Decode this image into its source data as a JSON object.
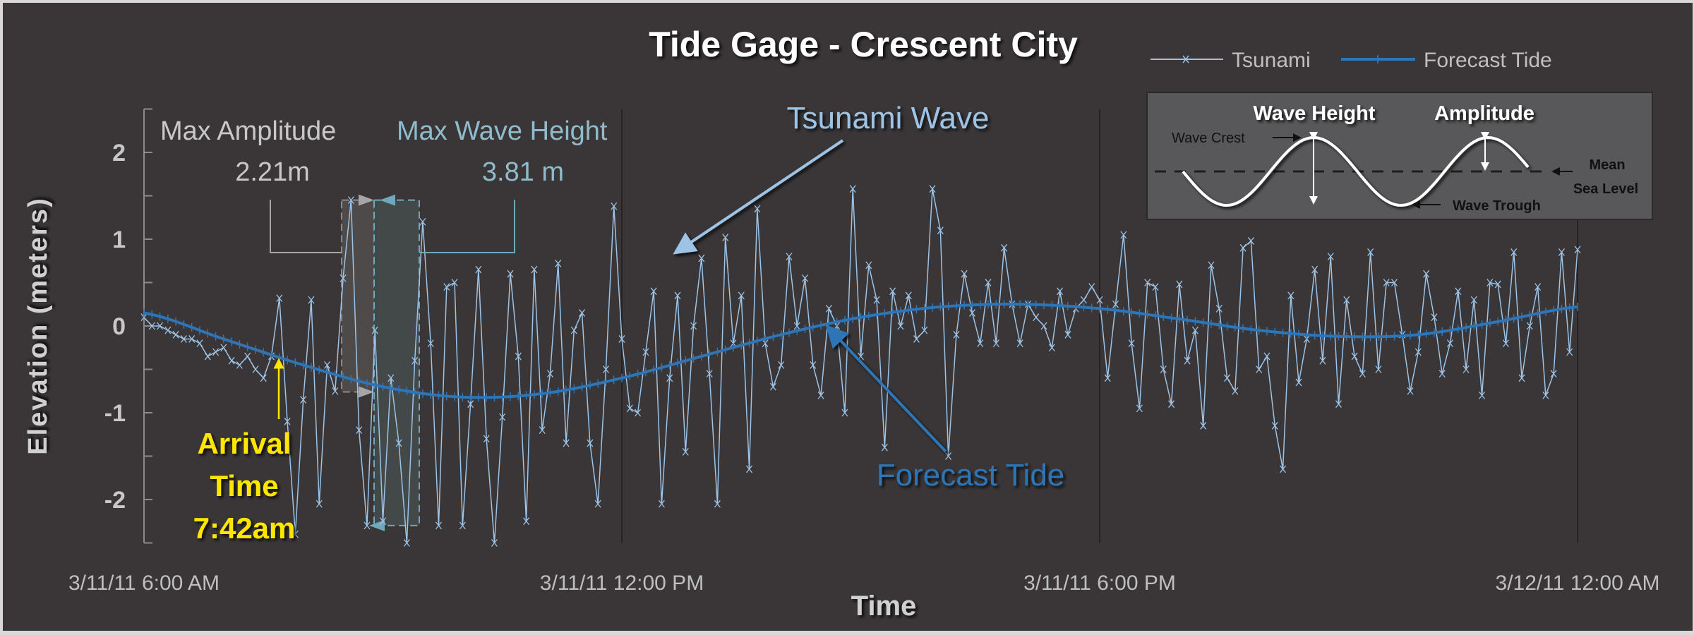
{
  "chart_data": {
    "type": "line",
    "title": "Tide Gage - Crescent City",
    "xlabel": "Time",
    "ylabel": "Elevation (meters)",
    "ylim": [
      -2.5,
      2.5
    ],
    "yticks": [
      "2",
      "1",
      "0",
      "-1",
      "-2"
    ],
    "ytick_values": [
      2,
      1,
      0,
      -1,
      -2
    ],
    "xticks": [
      "3/11/11 6:00 AM",
      "3/11/11 12:00 PM",
      "3/11/11 6:00 PM",
      "3/12/11 12:00 AM"
    ],
    "xtick_hours": [
      6,
      12,
      18,
      24
    ],
    "grid": "vertical at x ticks",
    "legend_position": "top-right",
    "series": [
      {
        "name": "Tsunami",
        "color": "#9dc3e6",
        "marker": "x",
        "start_hour": 6,
        "step_minutes": 6,
        "values": [
          0.1,
          0.0,
          0.0,
          -0.05,
          -0.1,
          -0.15,
          -0.15,
          -0.2,
          -0.35,
          -0.3,
          -0.25,
          -0.4,
          -0.45,
          -0.35,
          -0.5,
          -0.6,
          -0.35,
          0.32,
          -1.1,
          -2.4,
          -0.85,
          0.3,
          -2.05,
          -0.45,
          -0.75,
          0.55,
          1.45,
          -1.2,
          -2.3,
          -0.05,
          -2.25,
          -0.6,
          -1.35,
          -2.5,
          -0.4,
          1.2,
          -0.2,
          -2.3,
          0.45,
          0.5,
          -2.3,
          -0.9,
          0.65,
          -1.3,
          -2.5,
          -1.05,
          0.6,
          -0.35,
          -2.25,
          0.65,
          -1.2,
          -0.55,
          0.72,
          -1.35,
          -0.05,
          0.15,
          -1.35,
          -2.05,
          -0.5,
          1.38,
          -0.15,
          -0.95,
          -1.0,
          -0.3,
          0.4,
          -2.05,
          -0.6,
          0.35,
          -1.45,
          0.0,
          0.78,
          -0.55,
          -2.05,
          1.02,
          -0.2,
          0.35,
          -1.65,
          1.35,
          -0.2,
          -0.7,
          -0.45,
          0.8,
          0.0,
          0.55,
          -0.45,
          -0.8,
          0.2,
          0.0,
          -1.0,
          1.58,
          -0.35,
          0.7,
          0.3,
          -1.4,
          0.4,
          0.0,
          0.35,
          -0.15,
          -0.05,
          1.58,
          1.1,
          -1.5,
          -0.1,
          0.6,
          0.15,
          -0.2,
          0.5,
          -0.2,
          0.9,
          0.25,
          -0.2,
          0.25,
          0.1,
          0.0,
          -0.25,
          0.4,
          -0.1,
          0.2,
          0.3,
          0.45,
          0.3,
          -0.6,
          0.25,
          1.05,
          -0.2,
          -0.95,
          0.5,
          0.45,
          -0.5,
          -0.9,
          0.48,
          -0.4,
          -0.05,
          -1.15,
          0.7,
          0.2,
          -0.6,
          -0.75,
          0.9,
          0.98,
          -0.5,
          -0.35,
          -1.15,
          -1.65,
          0.35,
          -0.65,
          -0.15,
          0.65,
          -0.4,
          0.8,
          -0.9,
          0.3,
          -0.35,
          -0.55,
          0.85,
          -0.5,
          0.5,
          0.5,
          -0.1,
          -0.75,
          -0.3,
          0.6,
          0.1,
          -0.55,
          -0.2,
          0.4,
          -0.5,
          0.3,
          -0.8,
          0.5,
          0.48,
          -0.2,
          0.85,
          -0.6,
          0.0,
          0.45,
          -0.8,
          -0.55,
          0.85,
          -0.3,
          0.88
        ]
      },
      {
        "name": "Forecast Tide",
        "color": "#2e75b6",
        "marker": "+",
        "hours": [
          6,
          7,
          8,
          9,
          10,
          11,
          12,
          13,
          14,
          15,
          16,
          17,
          18,
          19,
          20,
          21,
          22,
          23,
          24
        ],
        "values": [
          0.15,
          -0.15,
          -0.45,
          -0.7,
          -0.82,
          -0.78,
          -0.6,
          -0.35,
          -0.1,
          0.1,
          0.22,
          0.25,
          0.2,
          0.08,
          -0.05,
          -0.12,
          -0.1,
          0.05,
          0.22
        ]
      }
    ],
    "annotations": {
      "max_amplitude_label": "Max Amplitude",
      "max_amplitude_value": "2.21m",
      "max_wave_height_label": "Max Wave Height",
      "max_wave_height_value": "3.81 m",
      "max_crest": 1.45,
      "max_trough": -2.3,
      "tide_at_crest": -0.76,
      "tsunami_wave_label": "Tsunami Wave",
      "forecast_tide_label": "Forecast Tide",
      "arrival_lines": [
        "Arrival",
        "Time",
        "7:42am"
      ],
      "arrival_color": "#ffe600"
    },
    "inset": {
      "wave_height": "Wave Height",
      "amplitude": "Amplitude",
      "wave_crest": "Wave Crest",
      "wave_trough": "Wave Trough",
      "mean": "Mean",
      "sea_level": "Sea Level"
    }
  }
}
